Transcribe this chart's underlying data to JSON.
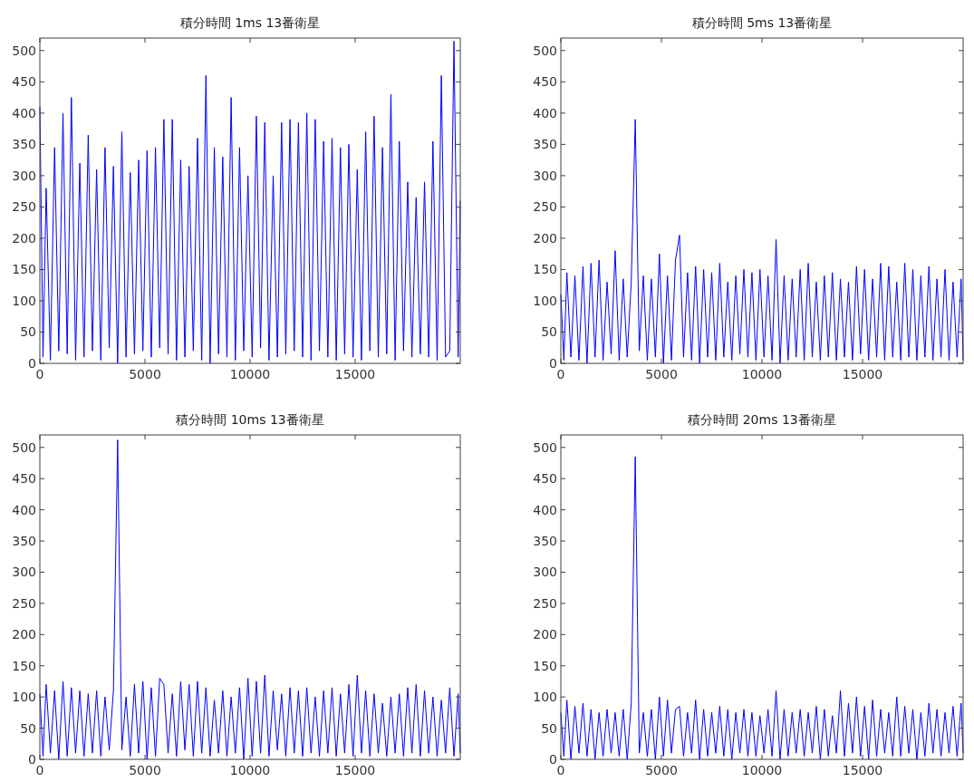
{
  "chart_data": [
    {
      "type": "line",
      "title": "積分時間 1ms  13番衛星",
      "color": "#0000ff",
      "xlim": [
        0,
        20000
      ],
      "ylim": [
        0,
        520
      ],
      "xticks": [
        0,
        5000,
        10000,
        15000
      ],
      "yticks": [
        0,
        50,
        100,
        150,
        200,
        250,
        300,
        350,
        400,
        450,
        500
      ],
      "x": [
        0,
        150,
        300,
        500,
        700,
        900,
        1100,
        1300,
        1500,
        1700,
        1900,
        2100,
        2300,
        2500,
        2700,
        2900,
        3100,
        3300,
        3500,
        3700,
        3900,
        4100,
        4300,
        4500,
        4700,
        4900,
        5100,
        5300,
        5500,
        5700,
        5900,
        6100,
        6300,
        6500,
        6700,
        6900,
        7100,
        7300,
        7500,
        7700,
        7900,
        8100,
        8300,
        8500,
        8700,
        8900,
        9100,
        9300,
        9500,
        9700,
        9900,
        10100,
        10300,
        10500,
        10700,
        10900,
        11100,
        11300,
        11500,
        11700,
        11900,
        12100,
        12300,
        12500,
        12700,
        12900,
        13100,
        13300,
        13500,
        13700,
        13900,
        14100,
        14300,
        14500,
        14700,
        14900,
        15100,
        15300,
        15500,
        15700,
        15900,
        16100,
        16300,
        16500,
        16700,
        16900,
        17100,
        17300,
        17500,
        17700,
        17900,
        18100,
        18300,
        18500,
        18700,
        18900,
        19100,
        19300,
        19500,
        19700,
        19900,
        20000
      ],
      "values": [
        410,
        10,
        280,
        5,
        345,
        20,
        400,
        15,
        425,
        5,
        320,
        10,
        365,
        20,
        310,
        5,
        345,
        25,
        315,
        0,
        370,
        10,
        305,
        15,
        325,
        20,
        340,
        10,
        345,
        25,
        390,
        15,
        390,
        5,
        325,
        10,
        315,
        20,
        360,
        5,
        460,
        0,
        345,
        15,
        330,
        10,
        425,
        5,
        345,
        20,
        300,
        10,
        395,
        25,
        385,
        5,
        300,
        10,
        385,
        15,
        390,
        20,
        385,
        10,
        400,
        5,
        390,
        20,
        355,
        10,
        360,
        5,
        345,
        15,
        350,
        10,
        310,
        5,
        370,
        20,
        395,
        10,
        345,
        15,
        430,
        5,
        355,
        20,
        290,
        10,
        265,
        15,
        290,
        10,
        355,
        5,
        460,
        10,
        20,
        515,
        10,
        260
      ]
    },
    {
      "type": "line",
      "title": "積分時間 5ms  13番衛星",
      "color": "#0000ff",
      "xlim": [
        0,
        20000
      ],
      "ylim": [
        0,
        520
      ],
      "xticks": [
        0,
        5000,
        10000,
        15000
      ],
      "yticks": [
        0,
        50,
        100,
        150,
        200,
        250,
        300,
        350,
        400,
        450,
        500
      ],
      "x": [
        0,
        150,
        300,
        500,
        700,
        900,
        1100,
        1300,
        1500,
        1700,
        1900,
        2100,
        2300,
        2500,
        2700,
        2900,
        3100,
        3300,
        3500,
        3700,
        3900,
        4100,
        4300,
        4500,
        4700,
        4900,
        5100,
        5300,
        5500,
        5700,
        5900,
        6100,
        6300,
        6500,
        6700,
        6900,
        7100,
        7300,
        7500,
        7700,
        7900,
        8100,
        8300,
        8500,
        8700,
        8900,
        9100,
        9300,
        9500,
        9700,
        9900,
        10100,
        10300,
        10500,
        10700,
        10900,
        11100,
        11300,
        11500,
        11700,
        11900,
        12100,
        12300,
        12500,
        12700,
        12900,
        13100,
        13300,
        13500,
        13700,
        13900,
        14100,
        14300,
        14500,
        14700,
        14900,
        15100,
        15300,
        15500,
        15700,
        15900,
        16100,
        16300,
        16500,
        16700,
        16900,
        17100,
        17300,
        17500,
        17700,
        17900,
        18100,
        18300,
        18500,
        18700,
        18900,
        19100,
        19300,
        19500,
        19700,
        19900,
        20000
      ],
      "values": [
        110,
        5,
        145,
        10,
        140,
        5,
        155,
        0,
        160,
        10,
        165,
        5,
        130,
        15,
        180,
        5,
        135,
        10,
        130,
        390,
        20,
        140,
        5,
        135,
        10,
        175,
        0,
        140,
        5,
        165,
        205,
        10,
        145,
        5,
        155,
        0,
        150,
        10,
        145,
        5,
        160,
        10,
        130,
        5,
        140,
        15,
        150,
        10,
        145,
        5,
        150,
        10,
        140,
        5,
        198,
        0,
        140,
        5,
        135,
        10,
        150,
        5,
        160,
        10,
        130,
        5,
        140,
        10,
        145,
        5,
        135,
        10,
        130,
        5,
        155,
        15,
        150,
        5,
        135,
        10,
        160,
        5,
        155,
        10,
        130,
        5,
        160,
        10,
        150,
        5,
        140,
        10,
        155,
        5,
        135,
        10,
        150,
        5,
        130,
        10,
        135,
        5
      ]
    },
    {
      "type": "line",
      "title": "積分時間 10ms  13番衛星",
      "color": "#0000ff",
      "xlim": [
        0,
        20000
      ],
      "ylim": [
        0,
        520
      ],
      "xticks": [
        0,
        5000,
        10000,
        15000
      ],
      "yticks": [
        0,
        50,
        100,
        150,
        200,
        250,
        300,
        350,
        400,
        450,
        500
      ],
      "x": [
        0,
        150,
        300,
        500,
        700,
        900,
        1100,
        1300,
        1500,
        1700,
        1900,
        2100,
        2300,
        2500,
        2700,
        2900,
        3100,
        3300,
        3500,
        3700,
        3900,
        4100,
        4300,
        4500,
        4700,
        4900,
        5100,
        5300,
        5500,
        5700,
        5900,
        6100,
        6300,
        6500,
        6700,
        6900,
        7100,
        7300,
        7500,
        7700,
        7900,
        8100,
        8300,
        8500,
        8700,
        8900,
        9100,
        9300,
        9500,
        9700,
        9900,
        10100,
        10300,
        10500,
        10700,
        10900,
        11100,
        11300,
        11500,
        11700,
        11900,
        12100,
        12300,
        12500,
        12700,
        12900,
        13100,
        13300,
        13500,
        13700,
        13900,
        14100,
        14300,
        14500,
        14700,
        14900,
        15100,
        15300,
        15500,
        15700,
        15900,
        16100,
        16300,
        16500,
        16700,
        16900,
        17100,
        17300,
        17500,
        17700,
        17900,
        18100,
        18300,
        18500,
        18700,
        18900,
        19100,
        19300,
        19500,
        19700,
        19900,
        20000
      ],
      "values": [
        105,
        5,
        120,
        10,
        110,
        0,
        125,
        5,
        115,
        10,
        110,
        5,
        105,
        10,
        110,
        5,
        100,
        15,
        110,
        512,
        15,
        100,
        5,
        120,
        10,
        125,
        0,
        115,
        5,
        130,
        120,
        10,
        105,
        5,
        125,
        15,
        120,
        5,
        125,
        10,
        115,
        5,
        95,
        10,
        110,
        5,
        100,
        10,
        115,
        0,
        130,
        5,
        125,
        10,
        135,
        5,
        110,
        15,
        105,
        5,
        115,
        10,
        110,
        5,
        115,
        10,
        100,
        5,
        110,
        10,
        115,
        5,
        105,
        10,
        120,
        5,
        135,
        10,
        110,
        5,
        105,
        10,
        90,
        5,
        100,
        10,
        105,
        5,
        115,
        10,
        120,
        5,
        110,
        10,
        100,
        5,
        95,
        10,
        115,
        5,
        105,
        10
      ]
    },
    {
      "type": "line",
      "title": "積分時間 20ms  13番衛星",
      "color": "#0000ff",
      "xlim": [
        0,
        20000
      ],
      "ylim": [
        0,
        520
      ],
      "xticks": [
        0,
        5000,
        10000,
        15000
      ],
      "yticks": [
        0,
        50,
        100,
        150,
        200,
        250,
        300,
        350,
        400,
        450,
        500
      ],
      "x": [
        0,
        150,
        300,
        500,
        700,
        900,
        1100,
        1300,
        1500,
        1700,
        1900,
        2100,
        2300,
        2500,
        2700,
        2900,
        3100,
        3300,
        3500,
        3700,
        3900,
        4100,
        4300,
        4500,
        4700,
        4900,
        5100,
        5300,
        5500,
        5700,
        5900,
        6100,
        6300,
        6500,
        6700,
        6900,
        7100,
        7300,
        7500,
        7700,
        7900,
        8100,
        8300,
        8500,
        8700,
        8900,
        9100,
        9300,
        9500,
        9700,
        9900,
        10100,
        10300,
        10500,
        10700,
        10900,
        11100,
        11300,
        11500,
        11700,
        11900,
        12100,
        12300,
        12500,
        12700,
        12900,
        13100,
        13300,
        13500,
        13700,
        13900,
        14100,
        14300,
        14500,
        14700,
        14900,
        15100,
        15300,
        15500,
        15700,
        15900,
        16100,
        16300,
        16500,
        16700,
        16900,
        17100,
        17300,
        17500,
        17700,
        17900,
        18100,
        18300,
        18500,
        18700,
        18900,
        19100,
        19300,
        19500,
        19700,
        19900,
        20000
      ],
      "values": [
        75,
        5,
        95,
        0,
        85,
        10,
        90,
        5,
        80,
        0,
        75,
        5,
        80,
        10,
        75,
        5,
        80,
        0,
        90,
        485,
        10,
        75,
        5,
        80,
        0,
        100,
        5,
        95,
        10,
        80,
        85,
        5,
        75,
        10,
        95,
        0,
        80,
        5,
        75,
        10,
        85,
        5,
        80,
        0,
        75,
        10,
        80,
        5,
        75,
        5,
        70,
        10,
        80,
        5,
        110,
        0,
        80,
        5,
        75,
        10,
        80,
        5,
        75,
        10,
        85,
        0,
        80,
        5,
        70,
        10,
        110,
        5,
        90,
        10,
        100,
        5,
        85,
        0,
        95,
        5,
        80,
        10,
        75,
        5,
        100,
        5,
        85,
        10,
        80,
        0,
        75,
        5,
        90,
        10,
        80,
        5,
        75,
        10,
        85,
        5,
        90,
        10
      ]
    }
  ]
}
